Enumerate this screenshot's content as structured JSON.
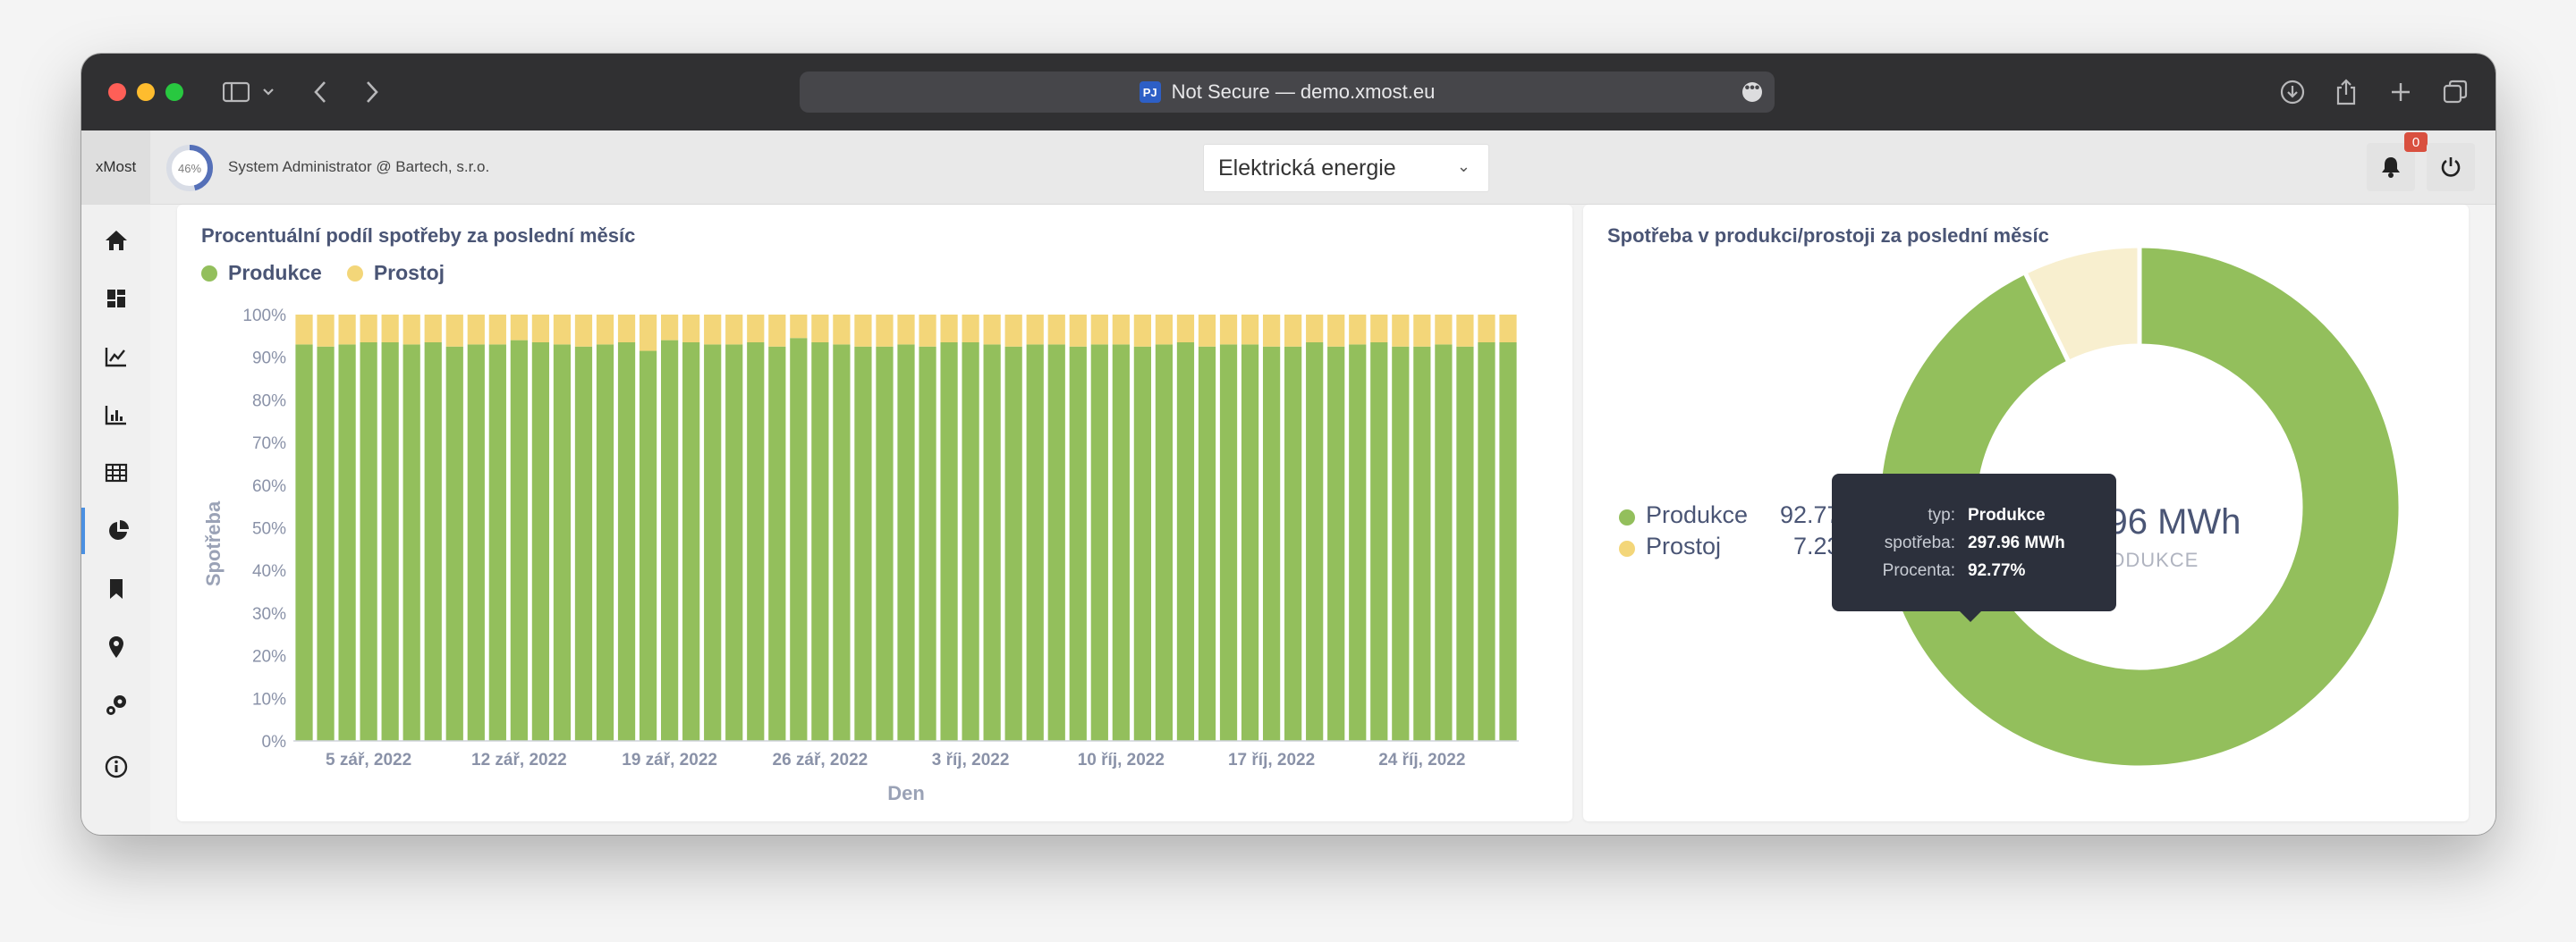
{
  "browser": {
    "url_badge": "PJ",
    "url_text": "Not Secure — demo.xmost.eu",
    "more": "•••"
  },
  "app": {
    "brand": "xMost",
    "gauge_value": "46%",
    "gauge_fraction": 0.46,
    "user_label": "System Administrator @ Bartech, s.r.o.",
    "energy_select": "Elektrická energie",
    "notification_count": "0"
  },
  "sidebar": {
    "items": [
      {
        "name": "home-icon"
      },
      {
        "name": "dashboard-icon"
      },
      {
        "name": "line-chart-icon"
      },
      {
        "name": "bar-chart-icon"
      },
      {
        "name": "table-icon"
      },
      {
        "name": "pie-chart-icon",
        "active": true
      },
      {
        "name": "bookmark-icon"
      },
      {
        "name": "location-pin-icon"
      },
      {
        "name": "gears-icon"
      },
      {
        "name": "info-icon"
      }
    ]
  },
  "left_card": {
    "title": "Procentuální podíl spotřeby za poslední měsíc",
    "legend": [
      {
        "label": "Produkce",
        "color": "#93bf5c"
      },
      {
        "label": "Prostoj",
        "color": "#f3d679"
      }
    ]
  },
  "right_card": {
    "title": "Spotřeba v produkci/prostoji za poslední měsíc",
    "legend": [
      {
        "label": "Produkce",
        "value": "92.77%",
        "color": "#93bf5c"
      },
      {
        "label": "Prostoj",
        "value": "7.23%",
        "color": "#f3d679"
      }
    ],
    "center_value": "297.96 MWh",
    "center_label": "PRODUKCE",
    "tooltip": {
      "rows": [
        {
          "key": "typ:",
          "value": "Produkce"
        },
        {
          "key": "spotřeba:",
          "value": "297.96 MWh"
        },
        {
          "key": "Procenta:",
          "value": "92.77%"
        }
      ]
    }
  },
  "chart_data": [
    {
      "type": "bar",
      "title": "Procentuální podíl spotřeby za poslední měsíc",
      "xlabel": "Den",
      "ylabel": "Spotřeba",
      "stacked": true,
      "ylim": [
        0,
        100
      ],
      "yticks": [
        "0%",
        "10%",
        "20%",
        "30%",
        "40%",
        "50%",
        "60%",
        "70%",
        "80%",
        "90%",
        "100%"
      ],
      "x_tick_labels": [
        "5 zář, 2022",
        "12 zář, 2022",
        "19 zář, 2022",
        "26 zář, 2022",
        "3 říj, 2022",
        "10 říj, 2022",
        "17 říj, 2022",
        "24 říj, 2022"
      ],
      "x_tick_positions": [
        3,
        10,
        17,
        24,
        31,
        38,
        45,
        52
      ],
      "legend_position": "top-left",
      "series": [
        {
          "name": "Produkce",
          "color": "#93bf5c",
          "values": [
            93,
            92.5,
            93,
            93.5,
            93.5,
            93,
            93.5,
            92.5,
            93,
            93,
            94,
            93.5,
            93,
            92.5,
            93,
            93.5,
            91.5,
            94,
            93.5,
            93,
            93,
            93.5,
            92.5,
            94.5,
            93.5,
            93,
            92.5,
            92.5,
            93,
            92.5,
            93.5,
            93.5,
            93,
            92.5,
            93,
            93,
            92.5,
            93,
            93,
            92.5,
            93,
            93.5,
            92.5,
            93,
            93,
            92.5,
            92.5,
            93.5,
            92.5,
            93,
            93.5,
            92.5,
            92.5,
            93,
            92.5,
            93.5,
            93.5
          ]
        },
        {
          "name": "Prostoj",
          "color": "#f3d679",
          "values": [
            7,
            7.5,
            7,
            6.5,
            6.5,
            7,
            6.5,
            7.5,
            7,
            7,
            6,
            6.5,
            7,
            7.5,
            7,
            6.5,
            8.5,
            6,
            6.5,
            7,
            7,
            6.5,
            7.5,
            5.5,
            6.5,
            7,
            7.5,
            7.5,
            7,
            7.5,
            6.5,
            6.5,
            7,
            7.5,
            7,
            7,
            7.5,
            7,
            7,
            7.5,
            7,
            6.5,
            7.5,
            7,
            7,
            7.5,
            7.5,
            6.5,
            7.5,
            7,
            6.5,
            7.5,
            7.5,
            7,
            7.5,
            6.5,
            6.5
          ]
        }
      ]
    },
    {
      "type": "pie",
      "donut": true,
      "title": "Spotřeba v produkci/prostoji za poslední měsíc",
      "categories": [
        "Produkce",
        "Prostoj"
      ],
      "values": [
        92.77,
        7.23
      ],
      "colors": [
        "#93bf5c",
        "#f8efcf"
      ],
      "legend_position": "left"
    }
  ]
}
